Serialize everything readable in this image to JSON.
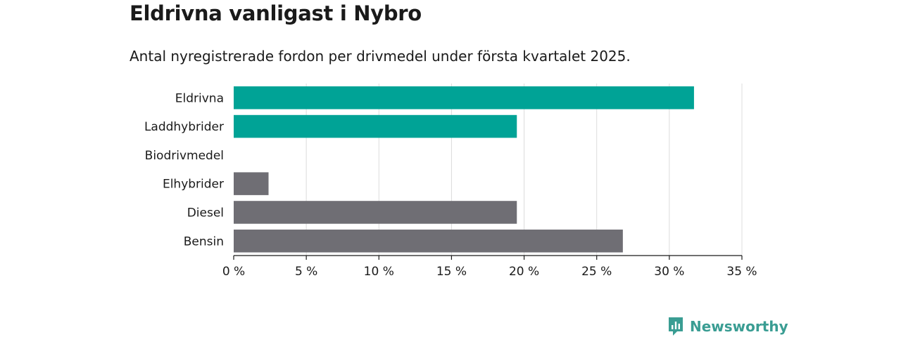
{
  "title": "Eldrivna vanligast i Nybro",
  "subtitle": "Antal nyregistrerade fordon per drivmedel under första kvartalet 2025.",
  "brand": {
    "name": "Newsworthy",
    "icon": "newsworthy-logo-icon",
    "color": "#3a9d93"
  },
  "chart_data": {
    "type": "bar",
    "orientation": "horizontal",
    "categories": [
      "Eldrivna",
      "Laddhybrider",
      "Biodrivmedel",
      "Elhybrider",
      "Diesel",
      "Bensin"
    ],
    "values": [
      31.7,
      19.5,
      0,
      2.4,
      19.5,
      26.8
    ],
    "bar_colors": [
      "#00a396",
      "#00a396",
      "#00a396",
      "#6f6e74",
      "#6f6e74",
      "#6f6e74"
    ],
    "xlim": [
      0,
      35
    ],
    "xticks": [
      0,
      5,
      10,
      15,
      20,
      25,
      30,
      35
    ],
    "xtick_labels": [
      "0 %",
      "5 %",
      "10 %",
      "15 %",
      "20 %",
      "25 %",
      "30 %",
      "35 %"
    ],
    "grid": true,
    "legend": "none"
  }
}
